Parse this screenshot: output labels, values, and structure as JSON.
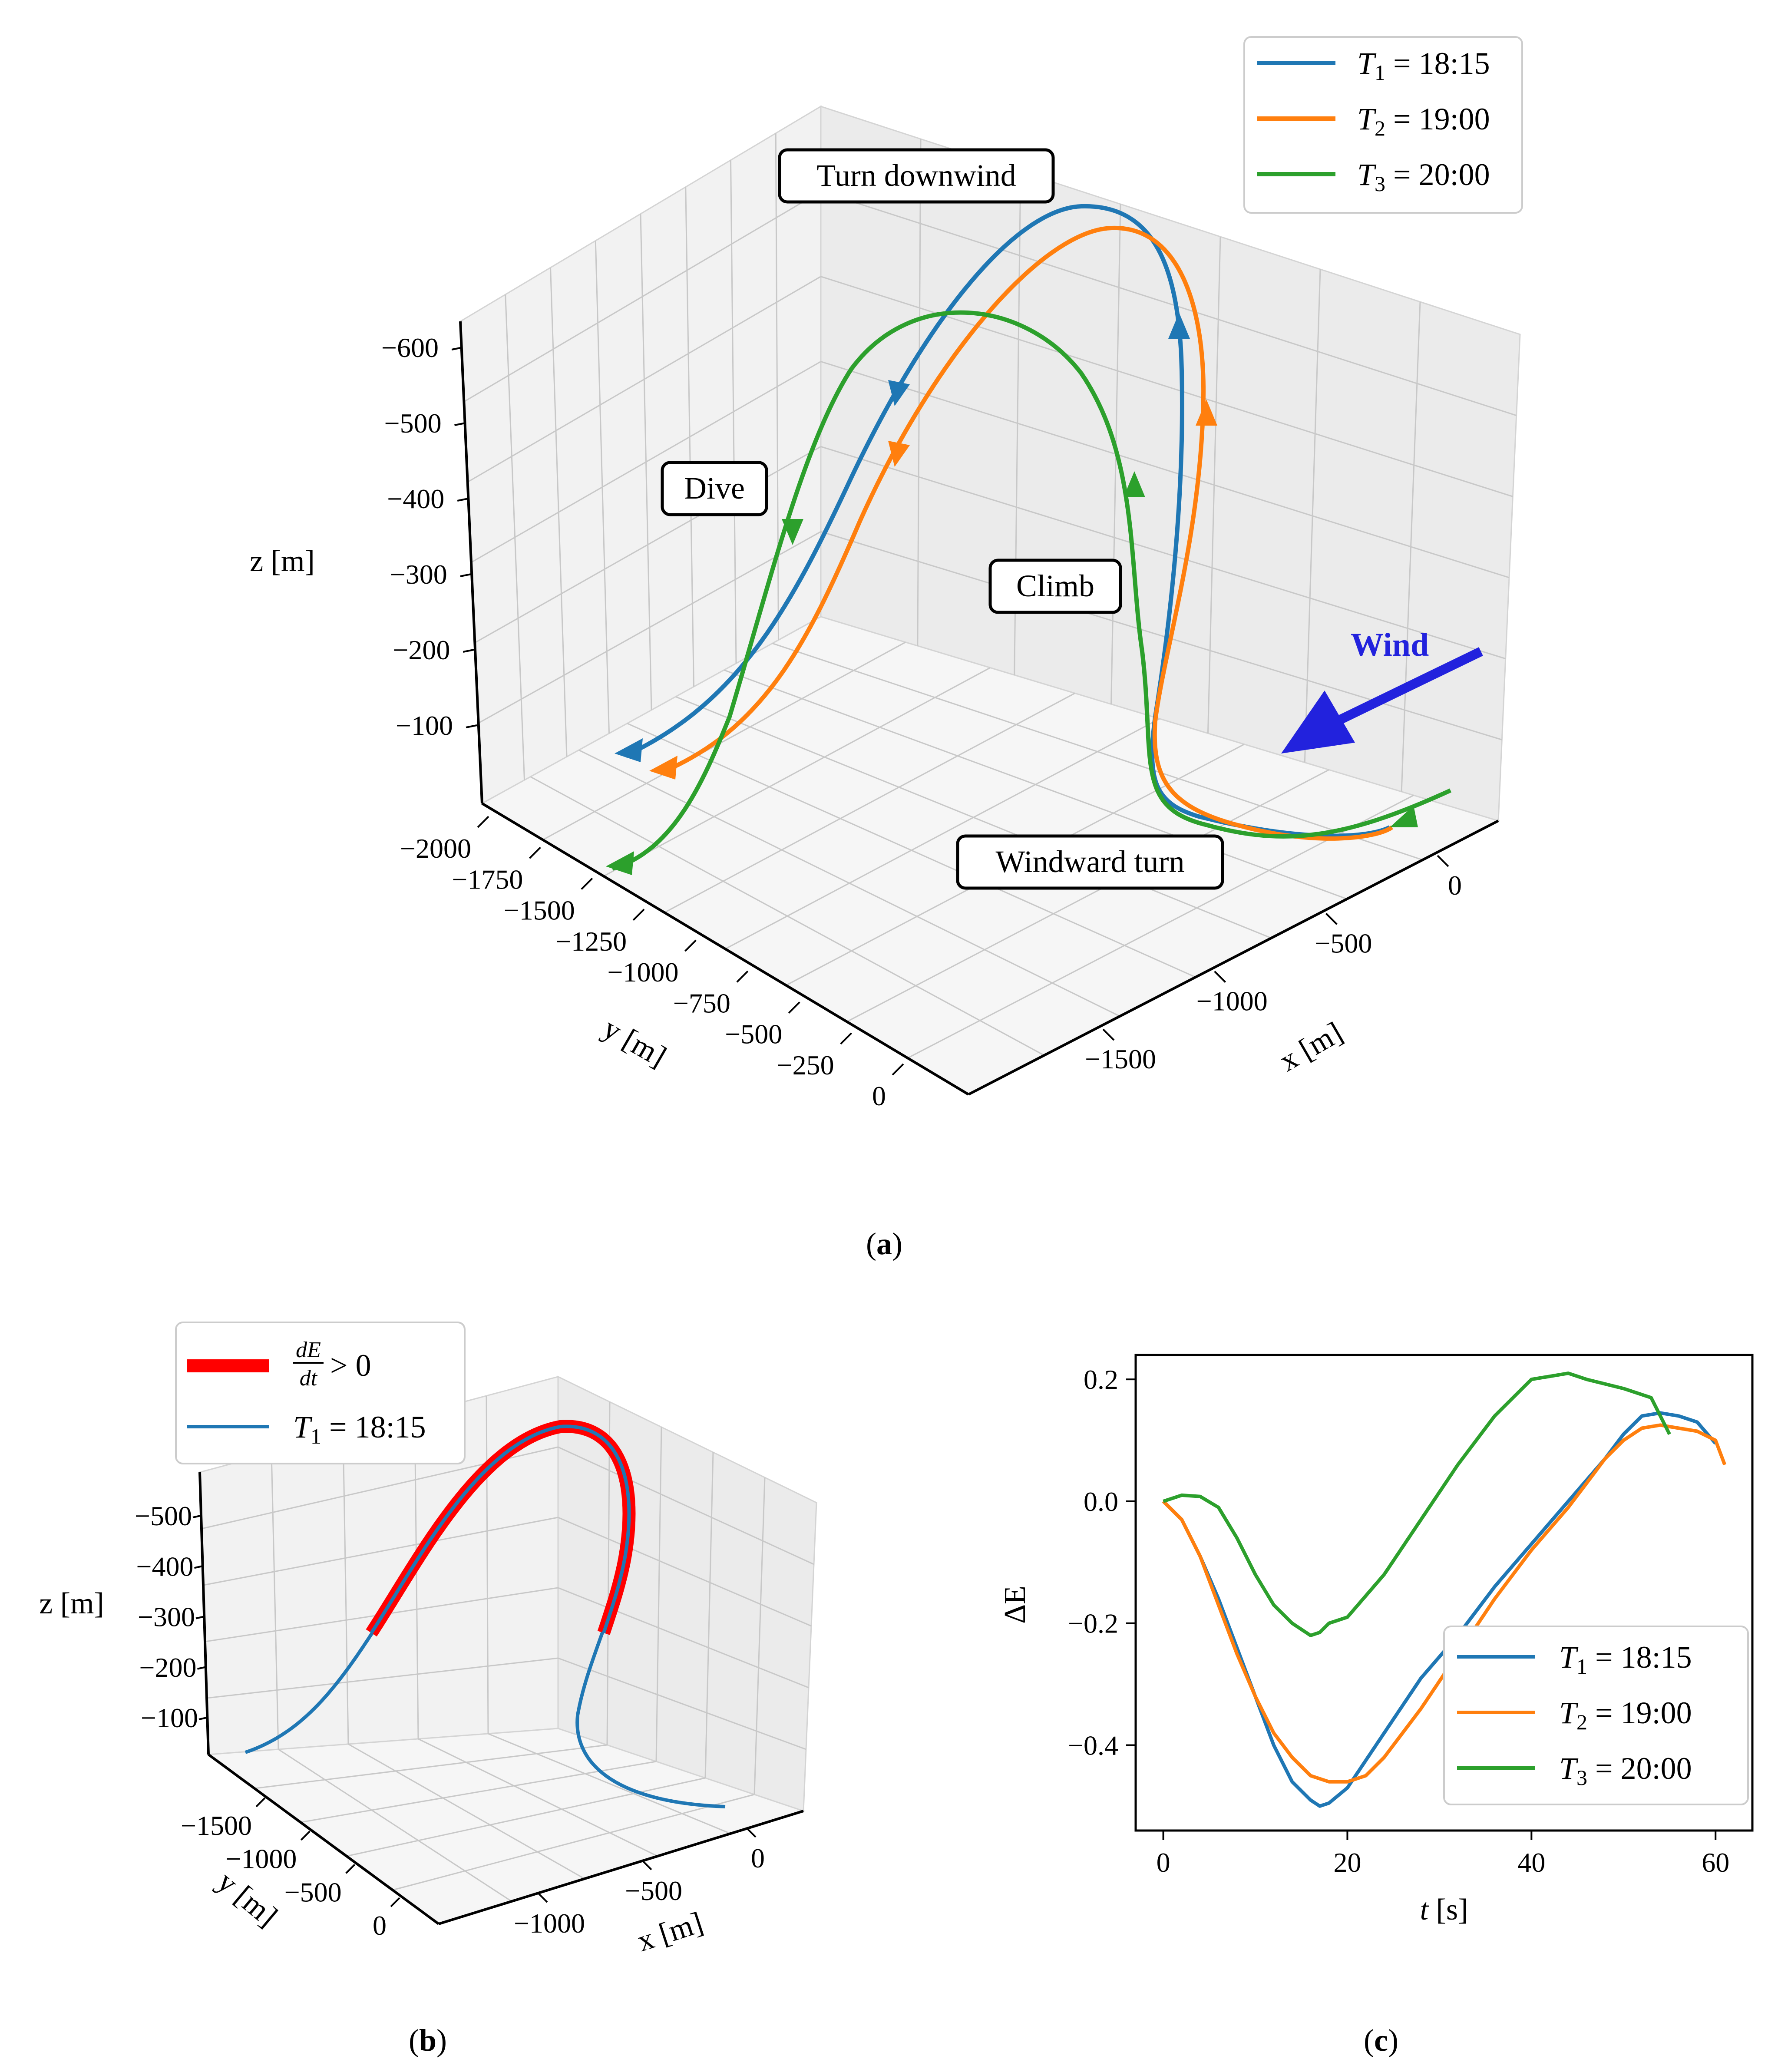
{
  "colors": {
    "T1": "#1f77b4",
    "T2": "#ff7f0e",
    "T3": "#2ca02c",
    "wind": "#2222dd",
    "red": "#ff0000"
  },
  "chart_data": [
    {
      "id": "a",
      "type": "line3d",
      "caption": "a",
      "zlabel": "z [m]",
      "ylabel": "y [m]",
      "xlabel": "x [m]",
      "zticks": [
        "−600",
        "−500",
        "−400",
        "−300",
        "−200",
        "−100"
      ],
      "yticks": [
        "−2000",
        "−1750",
        "−1500",
        "−1250",
        "−1000",
        "−750",
        "−500",
        "−250",
        "0"
      ],
      "xticks": [
        "−1500",
        "−1000",
        "−500",
        "0"
      ],
      "annotations": [
        "Turn downwind",
        "Dive",
        "Climb",
        "Windward turn"
      ],
      "wind_label": "Wind",
      "legend": [
        {
          "name": "T1",
          "sub": "1",
          "value": "= 18:15",
          "color": "#1f77b4"
        },
        {
          "name": "T2",
          "sub": "2",
          "value": "= 19:00",
          "color": "#ff7f0e"
        },
        {
          "name": "T3",
          "sub": "3",
          "value": "= 20:00",
          "color": "#2ca02c"
        }
      ]
    },
    {
      "id": "b",
      "type": "line3d",
      "caption": "b",
      "zlabel": "z [m]",
      "ylabel": "y [m]",
      "xlabel": "x [m]",
      "zticks": [
        "−500",
        "−400",
        "−300",
        "−200",
        "−100"
      ],
      "yticks": [
        "−1500",
        "−1000",
        "−500",
        "0"
      ],
      "xticks": [
        "−1000",
        "−500",
        "0"
      ],
      "legend": [
        {
          "name": "dE/dt > 0",
          "num": "dE",
          "den": "dt",
          "rel": "> 0",
          "color": "#ff0000"
        },
        {
          "name": "T1",
          "sub": "1",
          "value": "= 18:15",
          "color": "#1f77b4"
        }
      ]
    },
    {
      "id": "c",
      "type": "line",
      "caption": "c",
      "xlabel": "t [s]",
      "ylabel": "ΔE",
      "xlim": [
        -3,
        64
      ],
      "ylim": [
        -0.54,
        0.24
      ],
      "xticks": [
        0,
        20,
        40,
        60
      ],
      "yticks": [
        0.2,
        0.0,
        -0.2,
        -0.4
      ],
      "ytick_labels": [
        "0.2",
        "0.0",
        "−0.2",
        "−0.4"
      ],
      "series": [
        {
          "name": "T1",
          "sub": "1",
          "value": "= 18:15",
          "color": "#1f77b4",
          "points": [
            [
              0,
              0
            ],
            [
              2,
              -0.03
            ],
            [
              4,
              -0.09
            ],
            [
              6,
              -0.16
            ],
            [
              8,
              -0.24
            ],
            [
              10,
              -0.32
            ],
            [
              12,
              -0.4
            ],
            [
              14,
              -0.46
            ],
            [
              16,
              -0.49
            ],
            [
              17,
              -0.5
            ],
            [
              18,
              -0.495
            ],
            [
              20,
              -0.47
            ],
            [
              24,
              -0.38
            ],
            [
              28,
              -0.29
            ],
            [
              32,
              -0.22
            ],
            [
              36,
              -0.14
            ],
            [
              40,
              -0.07
            ],
            [
              44,
              0.0
            ],
            [
              48,
              0.07
            ],
            [
              50,
              0.11
            ],
            [
              52,
              0.14
            ],
            [
              54,
              0.145
            ],
            [
              56,
              0.14
            ],
            [
              58,
              0.13
            ],
            [
              60,
              0.095
            ]
          ]
        },
        {
          "name": "T2",
          "sub": "2",
          "value": "= 19:00",
          "color": "#ff7f0e",
          "points": [
            [
              0,
              0
            ],
            [
              2,
              -0.03
            ],
            [
              4,
              -0.09
            ],
            [
              6,
              -0.17
            ],
            [
              8,
              -0.25
            ],
            [
              10,
              -0.32
            ],
            [
              12,
              -0.38
            ],
            [
              14,
              -0.42
            ],
            [
              16,
              -0.45
            ],
            [
              18,
              -0.46
            ],
            [
              20,
              -0.46
            ],
            [
              22,
              -0.45
            ],
            [
              24,
              -0.42
            ],
            [
              28,
              -0.34
            ],
            [
              32,
              -0.25
            ],
            [
              36,
              -0.16
            ],
            [
              40,
              -0.08
            ],
            [
              44,
              -0.01
            ],
            [
              48,
              0.07
            ],
            [
              50,
              0.1
            ],
            [
              52,
              0.12
            ],
            [
              54,
              0.125
            ],
            [
              56,
              0.12
            ],
            [
              58,
              0.115
            ],
            [
              60,
              0.1
            ],
            [
              61,
              0.06
            ]
          ]
        },
        {
          "name": "T3",
          "sub": "3",
          "value": "= 20:00",
          "color": "#2ca02c",
          "points": [
            [
              0,
              0
            ],
            [
              2,
              0.01
            ],
            [
              4,
              0.008
            ],
            [
              6,
              -0.01
            ],
            [
              8,
              -0.06
            ],
            [
              10,
              -0.12
            ],
            [
              12,
              -0.17
            ],
            [
              14,
              -0.2
            ],
            [
              16,
              -0.22
            ],
            [
              17,
              -0.215
            ],
            [
              18,
              -0.2
            ],
            [
              20,
              -0.19
            ],
            [
              24,
              -0.12
            ],
            [
              28,
              -0.03
            ],
            [
              32,
              0.06
            ],
            [
              36,
              0.14
            ],
            [
              40,
              0.2
            ],
            [
              44,
              0.21
            ],
            [
              46,
              0.2
            ],
            [
              50,
              0.185
            ],
            [
              53,
              0.17
            ],
            [
              55,
              0.11
            ]
          ]
        }
      ]
    }
  ]
}
